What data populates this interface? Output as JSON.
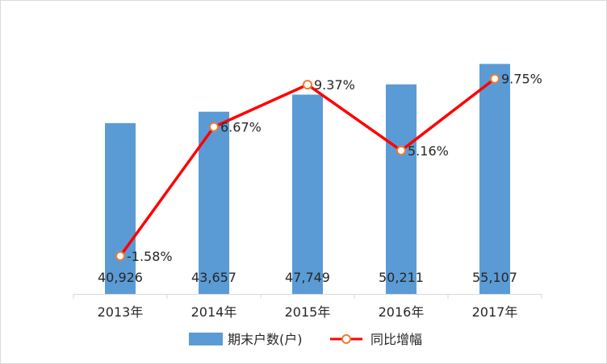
{
  "chart_data": {
    "type": "bar",
    "categories": [
      "2013年",
      "2014年",
      "2015年",
      "2016年",
      "2017年"
    ],
    "series": [
      {
        "name": "期末户数(户)",
        "type": "bar",
        "values": [
          40926,
          43657,
          47749,
          50211,
          55107
        ],
        "labels": [
          "40,926",
          "43,657",
          "47,749",
          "50,211",
          "55,107"
        ],
        "color": "#5b9bd5"
      },
      {
        "name": "同比增幅",
        "type": "line",
        "values": [
          -1.58,
          6.67,
          9.37,
          5.16,
          9.75
        ],
        "labels": [
          "-1.58%",
          "6.67%",
          "9.37%",
          "5.16%",
          "9.75%"
        ],
        "color": "#ff0000",
        "marker_color": "#ed7d31"
      }
    ],
    "ylim_bar": [
      0,
      60000
    ],
    "ylim_line": [
      -4,
      12
    ],
    "grid": false,
    "legend_position": "bottom"
  }
}
